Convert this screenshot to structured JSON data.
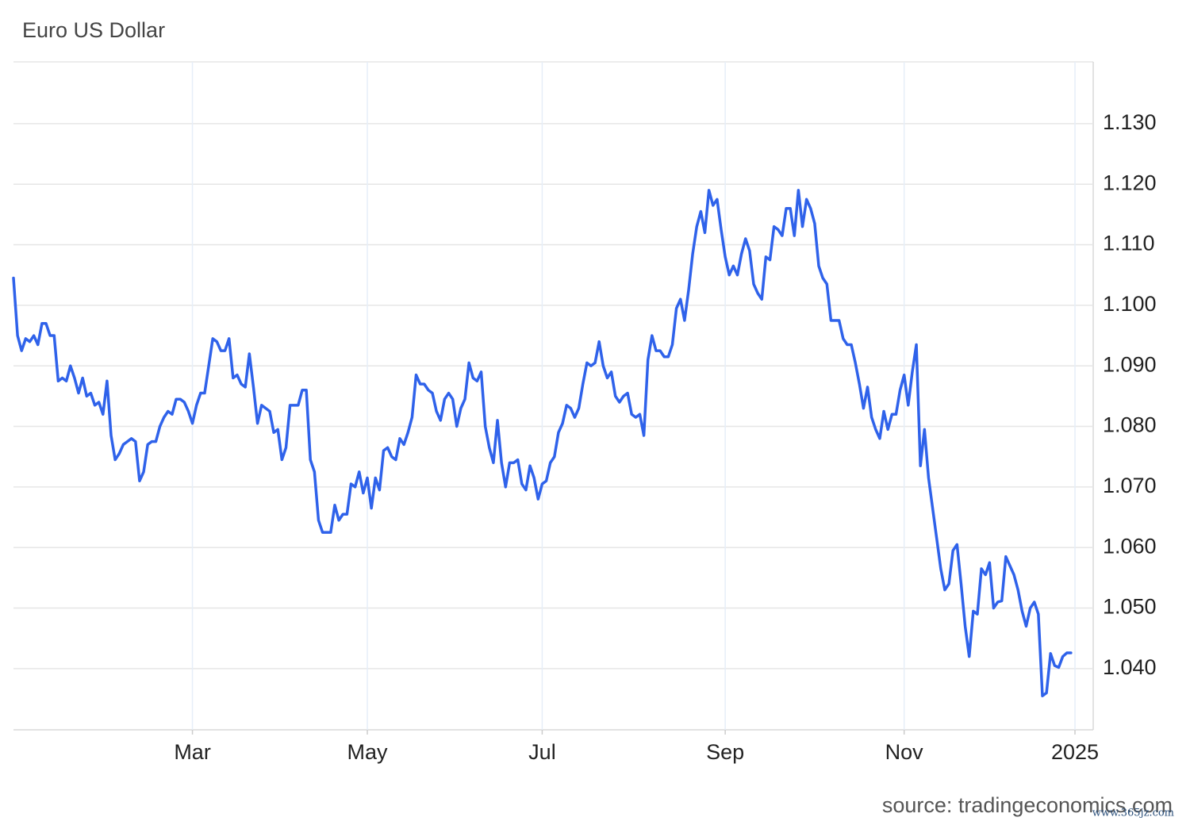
{
  "chart_data": {
    "type": "line",
    "title": "Euro US Dollar",
    "source": "source: tradingeconomics.com",
    "watermark": "www.365jz.com",
    "categories": [
      null,
      null,
      null,
      null,
      null,
      null,
      null,
      null,
      null,
      null,
      null,
      null,
      null,
      null,
      null,
      null,
      null,
      null,
      null,
      null,
      null,
      null,
      null,
      null,
      null,
      null,
      null,
      null,
      null,
      null,
      null,
      null,
      null,
      null,
      null,
      null,
      null,
      null,
      null,
      null,
      null,
      null,
      null,
      null,
      "Mar",
      null,
      null,
      null,
      null,
      null,
      null,
      null,
      null,
      null,
      null,
      null,
      null,
      null,
      null,
      null,
      null,
      null,
      null,
      null,
      null,
      null,
      null,
      null,
      null,
      null,
      null,
      null,
      null,
      null,
      null,
      null,
      null,
      null,
      null,
      null,
      null,
      null,
      null,
      null,
      null,
      null,
      null,
      "May",
      null,
      null,
      null,
      null,
      null,
      null,
      null,
      null,
      null,
      null,
      null,
      null,
      null,
      null,
      null,
      null,
      null,
      null,
      null,
      null,
      null,
      null,
      null,
      null,
      null,
      null,
      null,
      null,
      null,
      null,
      null,
      null,
      null,
      null,
      null,
      null,
      null,
      null,
      null,
      null,
      null,
      null,
      "Jul",
      null,
      null,
      null,
      null,
      null,
      null,
      null,
      null,
      null,
      null,
      null,
      null,
      null,
      null,
      null,
      null,
      null,
      null,
      null,
      null,
      null,
      null,
      null,
      null,
      null,
      null,
      null,
      null,
      null,
      null,
      null,
      null,
      null,
      null,
      null,
      null,
      null,
      null,
      null,
      null,
      null,
      null,
      null,
      null,
      "Sep",
      null,
      null,
      null,
      null,
      null,
      null,
      null,
      null,
      null,
      null,
      null,
      null,
      null,
      null,
      null,
      null,
      null,
      null,
      null,
      null,
      null,
      null,
      null,
      null,
      null,
      null,
      null,
      null,
      null,
      null,
      null,
      null,
      null,
      null,
      null,
      null,
      null,
      null,
      null,
      null,
      null,
      null,
      null,
      "Nov",
      null,
      null,
      null,
      null,
      null,
      null,
      null,
      null,
      null,
      null,
      null,
      null,
      null,
      null,
      null,
      null,
      null,
      null,
      null,
      null,
      null,
      null,
      null,
      null,
      null,
      null,
      null,
      null,
      null,
      null,
      null,
      null,
      null,
      null,
      null,
      null,
      null,
      null,
      null,
      null,
      null,
      "2025"
    ],
    "series": [
      {
        "name": "EURUSD",
        "color": "#2f62ea",
        "values": [
          1.1045,
          1.095,
          1.0925,
          1.0945,
          1.094,
          1.095,
          1.0935,
          1.097,
          1.097,
          1.095,
          1.095,
          1.0875,
          1.088,
          1.0875,
          1.09,
          1.088,
          1.0855,
          1.088,
          1.085,
          1.0855,
          1.0835,
          1.084,
          1.082,
          1.0875,
          1.0785,
          1.0745,
          1.0755,
          1.077,
          1.0775,
          1.078,
          1.0775,
          1.071,
          1.0725,
          1.077,
          1.0775,
          1.0775,
          1.08,
          1.0815,
          1.0825,
          1.082,
          1.0845,
          1.0845,
          1.084,
          1.0825,
          1.0805,
          1.0835,
          1.0855,
          1.0855,
          1.09,
          1.0945,
          1.094,
          1.0925,
          1.0925,
          1.0945,
          1.088,
          1.0885,
          1.087,
          1.0865,
          1.092,
          1.0865,
          1.0805,
          1.0835,
          1.083,
          1.0825,
          1.079,
          1.0795,
          1.0745,
          1.0765,
          1.0835,
          1.0835,
          1.0835,
          1.086,
          1.086,
          1.0745,
          1.0725,
          1.0645,
          1.0625,
          1.0625,
          1.0625,
          1.067,
          1.0645,
          1.0655,
          1.0655,
          1.0705,
          1.07,
          1.0725,
          1.069,
          1.0715,
          1.0665,
          1.0715,
          1.0695,
          1.076,
          1.0765,
          1.075,
          1.0745,
          1.078,
          1.077,
          1.079,
          1.0815,
          1.0885,
          1.087,
          1.087,
          1.086,
          1.0855,
          1.0825,
          1.081,
          1.0845,
          1.0855,
          1.0845,
          1.08,
          1.083,
          1.0845,
          1.0905,
          1.088,
          1.0875,
          1.089,
          1.08,
          1.0765,
          1.074,
          1.081,
          1.074,
          1.07,
          1.074,
          1.074,
          1.0745,
          1.0705,
          1.0695,
          1.0735,
          1.0715,
          1.068,
          1.0705,
          1.071,
          1.074,
          1.075,
          1.079,
          1.0805,
          1.0835,
          1.083,
          1.0815,
          1.083,
          1.087,
          1.0905,
          1.09,
          1.0905,
          1.094,
          1.09,
          1.088,
          1.089,
          1.085,
          1.084,
          1.085,
          1.0855,
          1.082,
          1.0815,
          1.082,
          1.0785,
          1.091,
          1.095,
          1.0925,
          1.0925,
          1.0915,
          1.0915,
          1.0935,
          1.0995,
          1.101,
          1.0975,
          1.1025,
          1.1085,
          1.113,
          1.1155,
          1.112,
          1.119,
          1.1165,
          1.1175,
          1.1125,
          1.108,
          1.105,
          1.1065,
          1.105,
          1.1085,
          1.111,
          1.109,
          1.1035,
          1.102,
          1.101,
          1.108,
          1.1075,
          1.113,
          1.1125,
          1.1115,
          1.116,
          1.116,
          1.1115,
          1.119,
          1.113,
          1.1175,
          1.116,
          1.1135,
          1.1065,
          1.1045,
          1.1035,
          1.0975,
          1.0975,
          1.0975,
          1.0945,
          1.0935,
          1.0935,
          1.0905,
          1.087,
          1.083,
          1.0865,
          1.0815,
          1.0795,
          1.078,
          1.0825,
          1.0795,
          1.082,
          1.082,
          1.086,
          1.0885,
          1.0835,
          1.089,
          1.0935,
          1.0735,
          1.0795,
          1.0715,
          1.0665,
          1.0615,
          1.0565,
          1.053,
          1.054,
          1.0595,
          1.0605,
          1.054,
          1.047,
          1.042,
          1.0495,
          1.049,
          1.0565,
          1.0555,
          1.0575,
          1.05,
          1.051,
          1.0512,
          1.0585,
          1.057,
          1.0555,
          1.053,
          1.0495,
          1.047,
          1.05,
          1.051,
          1.049,
          1.0355,
          1.036,
          1.0425,
          1.0405,
          1.0402,
          1.042,
          1.0426,
          1.0426,
          null
        ]
      }
    ],
    "ylim": [
      1.0299,
      1.1402
    ],
    "yticks": [
      {
        "value": 1.04,
        "label": "1.040"
      },
      {
        "value": 1.05,
        "label": "1.050"
      },
      {
        "value": 1.06,
        "label": "1.060"
      },
      {
        "value": 1.07,
        "label": "1.070"
      },
      {
        "value": 1.08,
        "label": "1.080"
      },
      {
        "value": 1.09,
        "label": "1.090"
      },
      {
        "value": 1.1,
        "label": "1.100"
      },
      {
        "value": 1.11,
        "label": "1.110"
      },
      {
        "value": 1.12,
        "label": "1.120"
      },
      {
        "value": 1.13,
        "label": "1.130"
      }
    ],
    "grid": true
  }
}
